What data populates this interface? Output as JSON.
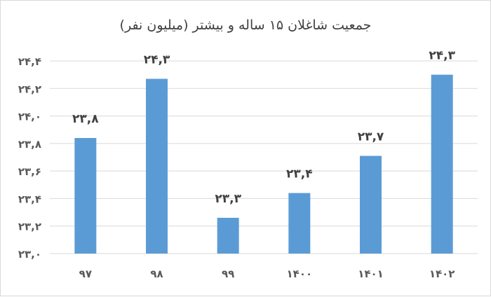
{
  "chart_data": {
    "type": "bar",
    "title": "جمعیت شاغلان ۱۵ ساله و بیشتر (میلیون نفر)",
    "categories": [
      "۹۷",
      "۹۸",
      "۹۹",
      "۱۴۰۰",
      "۱۴۰۱",
      "۱۴۰۲"
    ],
    "values": [
      23.84,
      24.27,
      23.26,
      23.44,
      23.71,
      24.3
    ],
    "data_labels": [
      "۲۳,۸",
      "۲۴,۳",
      "۲۳,۳",
      "۲۳,۴",
      "۲۳,۷",
      "۲۴,۳"
    ],
    "ylim": [
      23.0,
      24.4
    ],
    "yticks": [
      23.0,
      23.2,
      23.4,
      23.6,
      23.8,
      24.0,
      24.2,
      24.4
    ],
    "ytick_labels": [
      "۲۳,۰",
      "۲۳,۲",
      "۲۳,۴",
      "۲۳,۶",
      "۲۳,۸",
      "۲۴,۰",
      "۲۴,۲",
      "۲۴,۴"
    ],
    "grid": true,
    "bar_color": "#5b9bd5",
    "grid_color": "#d9d9d9"
  }
}
